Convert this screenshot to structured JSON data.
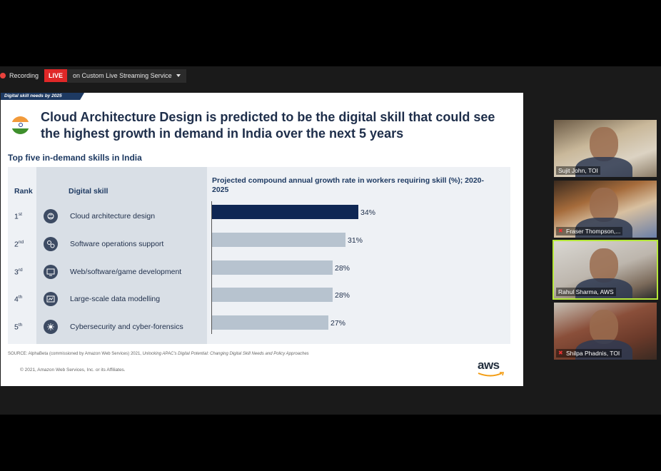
{
  "recording": {
    "label": "Recording",
    "live": "LIVE",
    "service": "on Custom Live Streaming Service"
  },
  "slide": {
    "tag": "Digital skill needs by 2025",
    "title": "Cloud Architecture Design is predicted to be the digital skill that could see the highest growth in demand in India over the next 5 years",
    "subtitle": "Top five in-demand skills in India",
    "rank_header": "Rank",
    "skill_header": "Digital skill",
    "chart_header": "Projected compound annual growth rate in workers requiring skill (%); 2020-2025",
    "source_prefix": "SOURCE: AlphaBeta (commissioned by Amazon Web Services) 2021, ",
    "source_title": "Unlocking APAC's Digital Potential: Changing Digital Skill Needs and Policy Approaches",
    "copyright": "© 2021, Amazon Web Services, Inc. or its Affiliates.",
    "logo": "aws",
    "rows": [
      {
        "rank": "1",
        "suffix": "st",
        "skill": "Cloud architecture design",
        "value_label": "34%",
        "icon": "cloud-design-icon"
      },
      {
        "rank": "2",
        "suffix": "nd",
        "skill": "Software operations support",
        "value_label": "31%",
        "icon": "gears-icon"
      },
      {
        "rank": "3",
        "suffix": "rd",
        "skill": "Web/software/game development",
        "value_label": "28%",
        "icon": "monitor-code-icon"
      },
      {
        "rank": "4",
        "suffix": "th",
        "skill": "Large-scale data modelling",
        "value_label": "28%",
        "icon": "chart-screen-icon"
      },
      {
        "rank": "5",
        "suffix": "th",
        "skill": "Cybersecurity and cyber-forensics",
        "value_label": "27%",
        "icon": "shield-network-icon"
      }
    ]
  },
  "chart_data": {
    "type": "bar",
    "orientation": "horizontal",
    "categories": [
      "Cloud architecture design",
      "Software operations support",
      "Web/software/game development",
      "Large-scale data modelling",
      "Cybersecurity and cyber-forensics"
    ],
    "values": [
      34,
      31,
      28,
      28,
      27
    ],
    "title": "Projected compound annual growth rate in workers requiring skill (%); 2020-2025",
    "xlim": [
      0,
      68
    ],
    "highlight_color": "#0f2754",
    "bar_color": "#b7c3cf"
  },
  "participants": [
    {
      "name": "Sujit John, TOI",
      "muted": false,
      "active": false
    },
    {
      "name": "Fraser Thompson,...",
      "muted": true,
      "active": false
    },
    {
      "name": "Rahul Sharma, AWS",
      "muted": false,
      "active": true
    },
    {
      "name": "Shilpa Phadnis, TOI",
      "muted": true,
      "active": false
    }
  ]
}
